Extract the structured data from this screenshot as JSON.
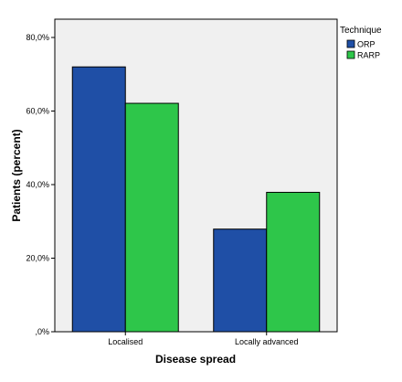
{
  "chart_data": {
    "type": "bar",
    "categories": [
      "Localised",
      "Locally advanced"
    ],
    "series": [
      {
        "name": "ORP",
        "values": [
          72.0,
          27.9
        ],
        "color": "#1f4fa6"
      },
      {
        "name": "RARP",
        "values": [
          62.1,
          37.9
        ],
        "color": "#2ec64a"
      }
    ],
    "xlabel": "Disease spread",
    "ylabel": "Patients (percent)",
    "ylim": [
      0,
      80
    ],
    "yticks": [
      0,
      20,
      40,
      60,
      80
    ],
    "ytick_labels": [
      ",0%",
      "20,0%",
      "40,0%",
      "60,0%",
      "80,0%"
    ],
    "legend_title": "Technique",
    "legend_position": "top-right",
    "grid": false,
    "plot_background": "#f0f0f0"
  }
}
